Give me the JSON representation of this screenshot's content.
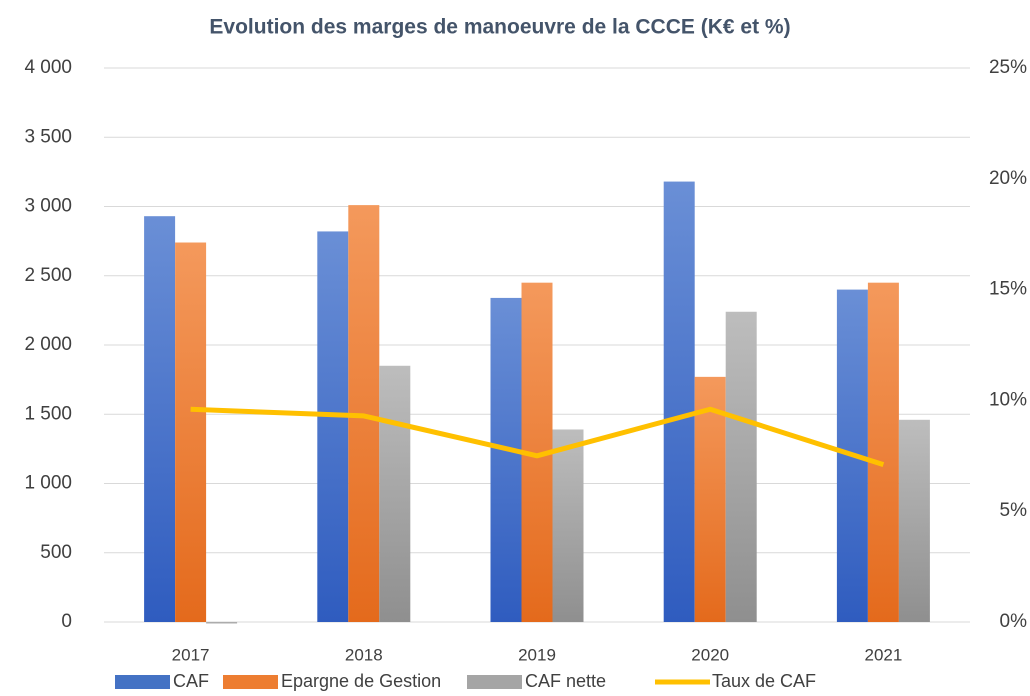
{
  "chart_data": {
    "type": "bar-line",
    "title": "Evolution des marges de manoeuvre de la CCCE (K€ et %)",
    "categories": [
      "2017",
      "2018",
      "2019",
      "2020",
      "2021"
    ],
    "series": [
      {
        "name": "CAF",
        "color": "#4472c4",
        "type": "bar",
        "values": [
          2930,
          2820,
          2340,
          3180,
          2400
        ]
      },
      {
        "name": "Epargne de Gestion",
        "color": "#ed7d31",
        "type": "bar",
        "values": [
          2740,
          3010,
          2450,
          1770,
          2450
        ]
      },
      {
        "name": "CAF nette",
        "color": "#a5a5a5",
        "type": "bar",
        "values": [
          -10,
          1850,
          1390,
          2240,
          1460
        ]
      },
      {
        "name": "Taux de CAF",
        "color": "#ffc000",
        "type": "line",
        "axis": "y2",
        "values": [
          9.6,
          9.3,
          7.5,
          9.6,
          7.1
        ]
      }
    ],
    "ylim": [
      0,
      4000
    ],
    "yticks": [
      0,
      500,
      {
        "value": 1000,
        "label": "1 000"
      },
      {
        "value": 1500,
        "label": "1 500"
      },
      {
        "value": 2000,
        "label": "2 000"
      },
      {
        "value": 2500,
        "label": "2 500"
      },
      {
        "value": 3000,
        "label": "3 000"
      },
      {
        "value": 3500,
        "label": "3 500"
      },
      {
        "value": 4000,
        "label": "4 000"
      }
    ],
    "y2lim": [
      0,
      25
    ],
    "y2ticks": [
      {
        "value": 0,
        "label": "0%"
      },
      {
        "value": 5,
        "label": "5%"
      },
      {
        "value": 10,
        "label": "10%"
      },
      {
        "value": 15,
        "label": "15%"
      },
      {
        "value": 20,
        "label": "20%"
      },
      {
        "value": 25,
        "label": "25%"
      }
    ],
    "grid": true,
    "legend": "bottom"
  }
}
